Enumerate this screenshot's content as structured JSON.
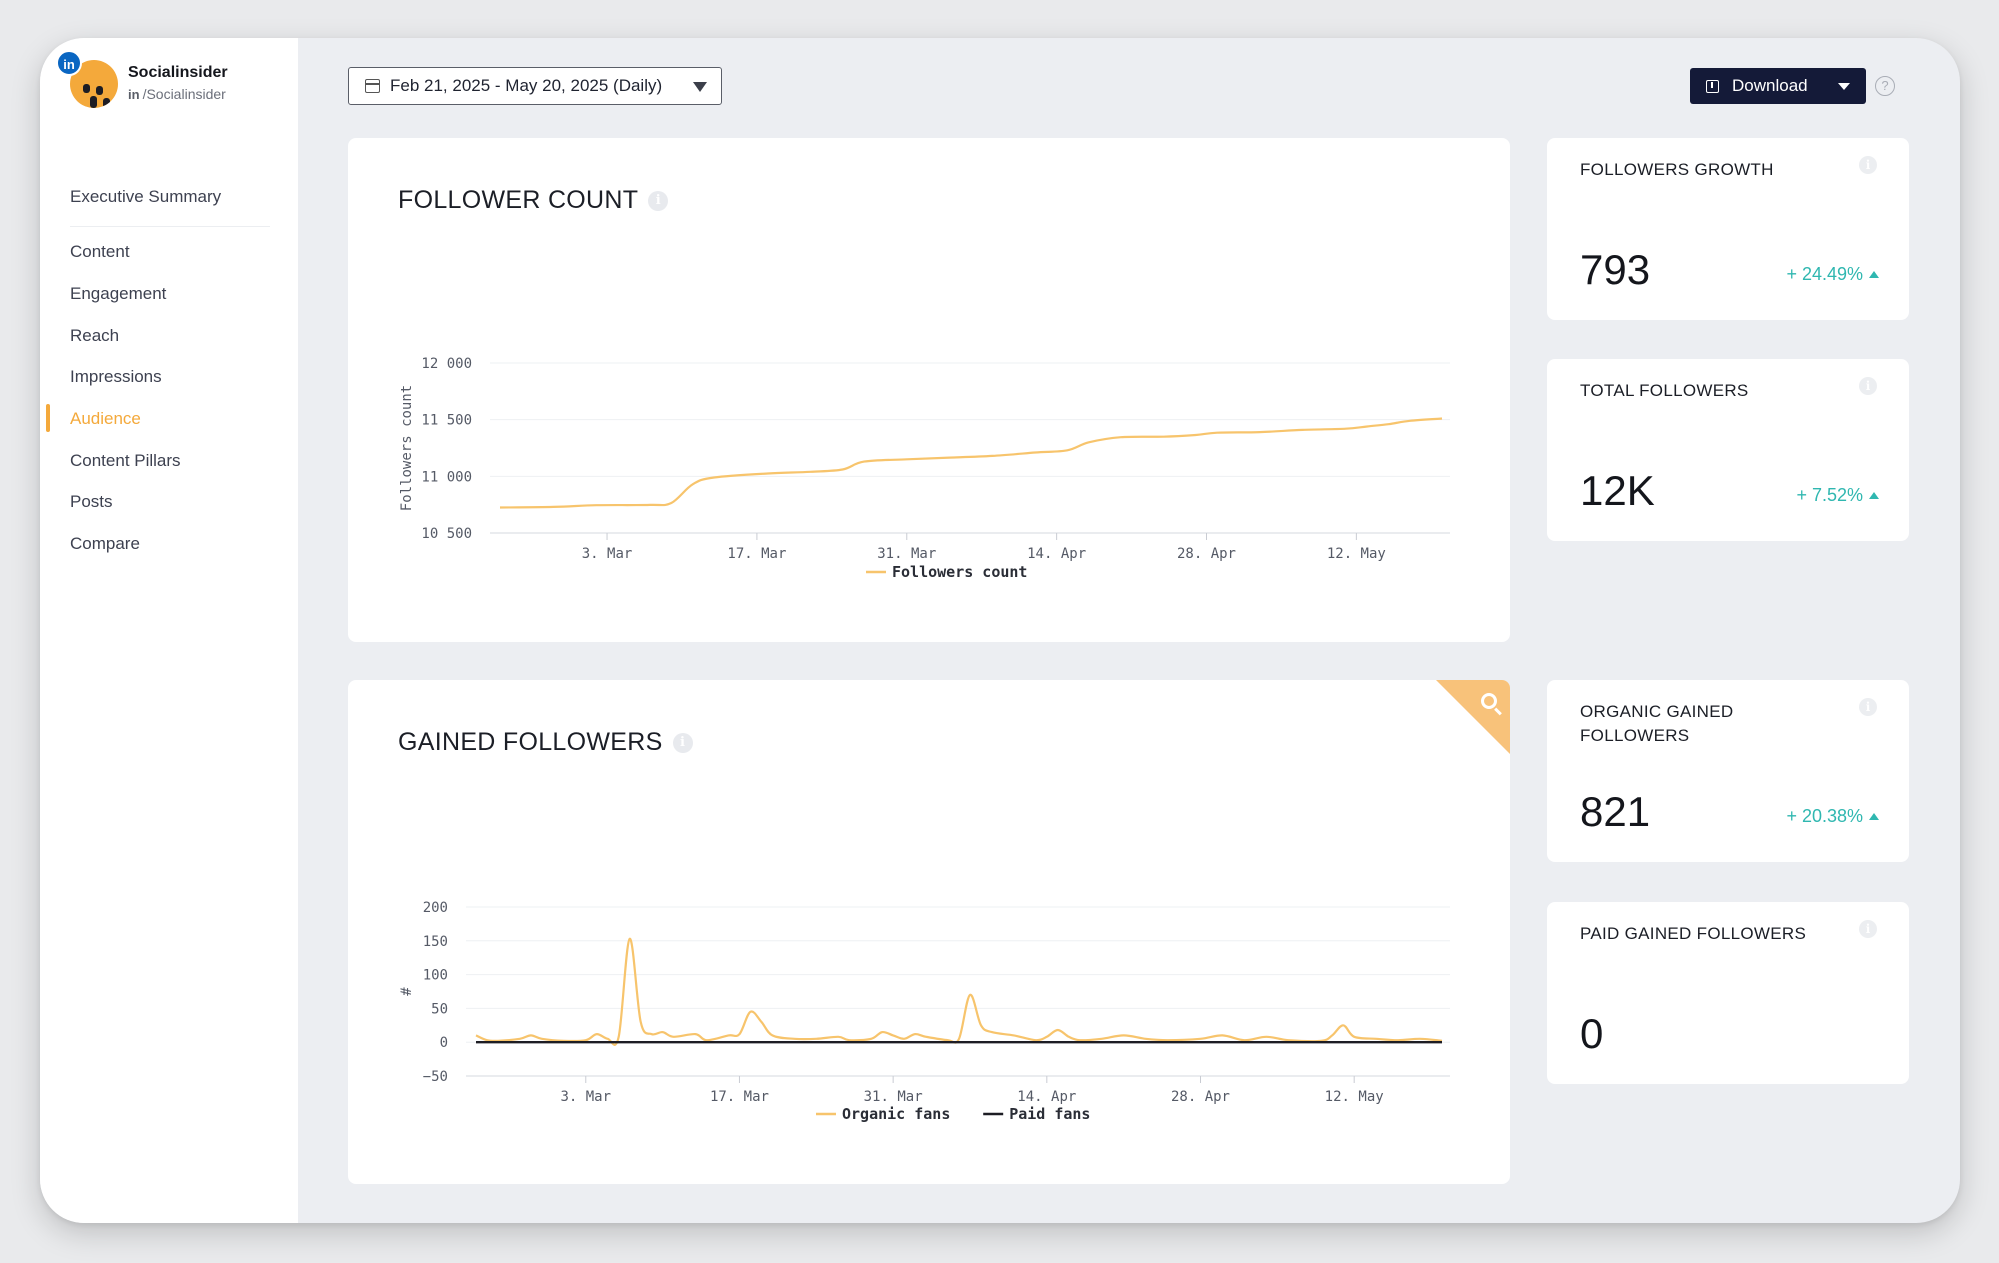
{
  "brand": {
    "name": "Socialinsider",
    "handle": "/Socialinsider",
    "handle_prefix": "in",
    "network_badge": "in"
  },
  "nav": {
    "items": [
      {
        "label": "Executive Summary",
        "active": false
      },
      {
        "label": "Content",
        "active": false
      },
      {
        "label": "Engagement",
        "active": false
      },
      {
        "label": "Reach",
        "active": false
      },
      {
        "label": "Impressions",
        "active": false
      },
      {
        "label": "Audience",
        "active": true
      },
      {
        "label": "Content Pillars",
        "active": false
      },
      {
        "label": "Posts",
        "active": false
      },
      {
        "label": "Compare",
        "active": false
      }
    ]
  },
  "toolbar": {
    "date_range": "Feb 21, 2025 - May 20, 2025 (Daily)",
    "download_label": "Download",
    "help_icon": "?"
  },
  "colors": {
    "accent": "#f4a93b",
    "line_organic": "#f7c46c",
    "line_paid": "#1d1d24",
    "positive": "#2fb7b0",
    "button_dark": "#141a38"
  },
  "follower_count": {
    "title": "FOLLOWER COUNT",
    "info_icon": "i",
    "chart_data": {
      "type": "line",
      "title": "",
      "ylabel": "Followers count",
      "xlabel": "",
      "ylim": [
        10500,
        12000
      ],
      "y_ticks": [
        "12 000",
        "11 500",
        "11 000",
        "10 500"
      ],
      "x_ticks": [
        "3. Mar",
        "17. Mar",
        "31. Mar",
        "14. Apr",
        "28. Apr",
        "12. May"
      ],
      "legend": [
        "Followers count"
      ],
      "series": [
        {
          "name": "Followers count",
          "points": [
            [
              "2025-02-21",
              10725
            ],
            [
              "2025-02-26",
              10730
            ],
            [
              "2025-03-02",
              10745
            ],
            [
              "2025-03-07",
              10748
            ],
            [
              "2025-03-09",
              10765
            ],
            [
              "2025-03-11",
              10930
            ],
            [
              "2025-03-13",
              10990
            ],
            [
              "2025-03-18",
              11025
            ],
            [
              "2025-03-22",
              11040
            ],
            [
              "2025-03-25",
              11060
            ],
            [
              "2025-03-27",
              11130
            ],
            [
              "2025-03-31",
              11150
            ],
            [
              "2025-04-04",
              11165
            ],
            [
              "2025-04-08",
              11180
            ],
            [
              "2025-04-12",
              11210
            ],
            [
              "2025-04-15",
              11230
            ],
            [
              "2025-04-17",
              11300
            ],
            [
              "2025-04-20",
              11345
            ],
            [
              "2025-04-24",
              11350
            ],
            [
              "2025-04-27",
              11365
            ],
            [
              "2025-04-29",
              11385
            ],
            [
              "2025-05-03",
              11390
            ],
            [
              "2025-05-07",
              11410
            ],
            [
              "2025-05-11",
              11420
            ],
            [
              "2025-05-13",
              11440
            ],
            [
              "2025-05-15",
              11460
            ],
            [
              "2025-05-17",
              11490
            ],
            [
              "2025-05-20",
              11510
            ]
          ]
        }
      ]
    }
  },
  "gained_followers": {
    "title": "GAINED FOLLOWERS",
    "info_icon": "i",
    "chart_data": {
      "type": "line",
      "title": "",
      "ylabel": "#",
      "xlabel": "",
      "ylim": [
        -50,
        200
      ],
      "y_ticks": [
        "200",
        "150",
        "100",
        "50",
        "0",
        "−50"
      ],
      "x_ticks": [
        "3. Mar",
        "17. Mar",
        "31. Mar",
        "14. Apr",
        "28. Apr",
        "12. May"
      ],
      "legend": [
        "Organic fans",
        "Paid fans"
      ],
      "series": [
        {
          "name": "Organic fans",
          "points": [
            [
              "2025-02-21",
              10
            ],
            [
              "2025-02-22",
              3
            ],
            [
              "2025-02-23",
              2
            ],
            [
              "2025-02-25",
              5
            ],
            [
              "2025-02-26",
              10
            ],
            [
              "2025-02-27",
              5
            ],
            [
              "2025-03-01",
              2
            ],
            [
              "2025-03-03",
              3
            ],
            [
              "2025-03-04",
              12
            ],
            [
              "2025-03-05",
              5
            ],
            [
              "2025-03-06",
              8
            ],
            [
              "2025-03-07",
              153
            ],
            [
              "2025-03-08",
              30
            ],
            [
              "2025-03-09",
              12
            ],
            [
              "2025-03-10",
              15
            ],
            [
              "2025-03-11",
              8
            ],
            [
              "2025-03-13",
              12
            ],
            [
              "2025-03-14",
              3
            ],
            [
              "2025-03-16",
              10
            ],
            [
              "2025-03-17",
              12
            ],
            [
              "2025-03-18",
              45
            ],
            [
              "2025-03-19",
              30
            ],
            [
              "2025-03-20",
              10
            ],
            [
              "2025-03-22",
              5
            ],
            [
              "2025-03-24",
              5
            ],
            [
              "2025-03-26",
              8
            ],
            [
              "2025-03-27",
              3
            ],
            [
              "2025-03-29",
              5
            ],
            [
              "2025-03-30",
              15
            ],
            [
              "2025-03-31",
              10
            ],
            [
              "2025-04-01",
              5
            ],
            [
              "2025-04-02",
              12
            ],
            [
              "2025-04-03",
              8
            ],
            [
              "2025-04-05",
              3
            ],
            [
              "2025-04-06",
              5
            ],
            [
              "2025-04-07",
              70
            ],
            [
              "2025-04-08",
              25
            ],
            [
              "2025-04-09",
              15
            ],
            [
              "2025-04-11",
              10
            ],
            [
              "2025-04-13",
              3
            ],
            [
              "2025-04-14",
              8
            ],
            [
              "2025-04-15",
              18
            ],
            [
              "2025-04-16",
              8
            ],
            [
              "2025-04-17",
              3
            ],
            [
              "2025-04-19",
              5
            ],
            [
              "2025-04-21",
              10
            ],
            [
              "2025-04-23",
              5
            ],
            [
              "2025-04-25",
              3
            ],
            [
              "2025-04-28",
              5
            ],
            [
              "2025-04-30",
              10
            ],
            [
              "2025-05-02",
              3
            ],
            [
              "2025-05-04",
              8
            ],
            [
              "2025-05-06",
              3
            ],
            [
              "2025-05-09",
              2
            ],
            [
              "2025-05-10",
              10
            ],
            [
              "2025-05-11",
              25
            ],
            [
              "2025-05-12",
              8
            ],
            [
              "2025-05-14",
              5
            ],
            [
              "2025-05-16",
              3
            ],
            [
              "2025-05-18",
              5
            ],
            [
              "2025-05-20",
              2
            ]
          ]
        },
        {
          "name": "Paid fans",
          "points": [
            [
              "2025-02-21",
              0
            ],
            [
              "2025-05-20",
              0
            ]
          ]
        }
      ]
    }
  },
  "stats": [
    {
      "title": "FOLLOWERS GROWTH",
      "value": "793",
      "change": "+ 24.49%",
      "info_icon": "i"
    },
    {
      "title": "TOTAL FOLLOWERS",
      "value": "12K",
      "change": "+ 7.52%",
      "info_icon": "i"
    },
    {
      "title": "ORGANIC GAINED FOLLOWERS",
      "value": "821",
      "change": "+ 20.38%",
      "info_icon": "i"
    },
    {
      "title": "PAID GAINED FOLLOWERS",
      "value": "0",
      "change": "",
      "info_icon": "i"
    }
  ]
}
